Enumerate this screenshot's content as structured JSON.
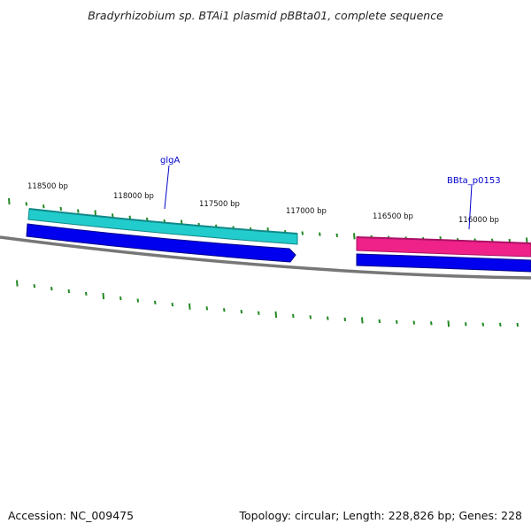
{
  "title": "Bradyrhizobium sp. BTAi1 plasmid pBBta01, complete sequence",
  "footer": {
    "accession": "Accession: NC_009475",
    "summary": "Topology: circular; Length: 228,826 bp; Genes: 228"
  },
  "colors": {
    "backbone": "#777777",
    "tick": "#228822",
    "gene_label": "#0000cc",
    "cyan_feature": "#22cccc",
    "magenta_feature": "#ee2288",
    "blue_feature": "#0000ee"
  },
  "scale": {
    "tick_labels": [
      {
        "bp": 118500,
        "text": "118500 bp"
      },
      {
        "bp": 118000,
        "text": "118000 bp"
      },
      {
        "bp": 117500,
        "text": "117500 bp"
      },
      {
        "bp": 117000,
        "text": "117000 bp"
      },
      {
        "bp": 116500,
        "text": "116500 bp"
      },
      {
        "bp": 116000,
        "text": "116000 bp"
      }
    ]
  },
  "features": [
    {
      "name": "glgA",
      "labeled": true,
      "color": "#22cccc",
      "strand": "forward"
    },
    {
      "name": "",
      "labeled": false,
      "color": "#0000ee",
      "strand": "reverse"
    },
    {
      "name": "BBta_p0153",
      "labeled": true,
      "color": "#ee2288",
      "strand": "forward"
    },
    {
      "name": "",
      "labeled": false,
      "color": "#0000ee",
      "strand": "reverse"
    }
  ]
}
